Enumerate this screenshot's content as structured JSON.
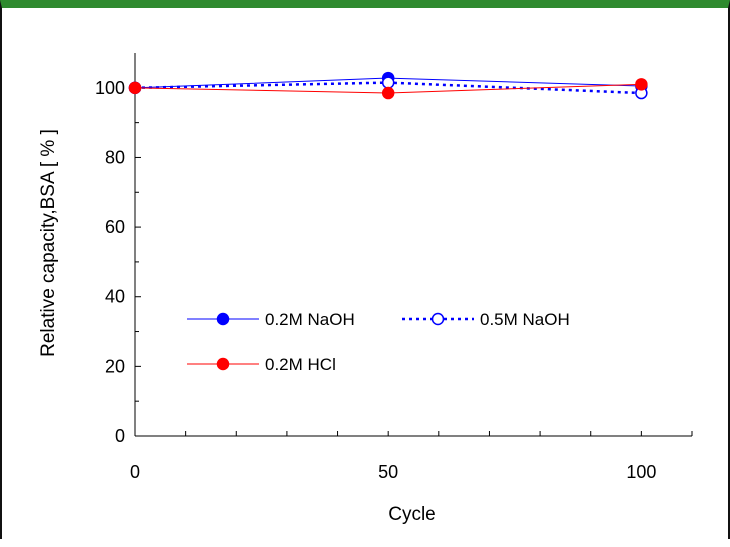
{
  "chart_data": {
    "type": "line",
    "title": "",
    "xlabel": "Cycle",
    "ylabel": "Relative capacity,BSA [ % ]",
    "xlim": [
      0,
      110
    ],
    "ylim": [
      0,
      110
    ],
    "x_ticks": [
      0,
      50,
      100
    ],
    "x_tick_labels": [
      "0",
      "50",
      "100"
    ],
    "y_ticks": [
      0,
      20,
      40,
      60,
      80,
      100
    ],
    "y_tick_labels": [
      "0",
      "20",
      "40",
      "60",
      "80",
      "100"
    ],
    "grid": false,
    "legend_position": "lower-left",
    "series": [
      {
        "name": "0.2M NaOH",
        "x": [
          0,
          50,
          100
        ],
        "y": [
          100,
          102.8,
          100.5
        ],
        "color": "#0000ff",
        "line": "solid",
        "marker": "filled-circle"
      },
      {
        "name": "0.5M NaOH",
        "x": [
          0,
          50,
          100
        ],
        "y": [
          100,
          101.5,
          98.5
        ],
        "color": "#0000ff",
        "line": "dotted",
        "marker": "open-circle"
      },
      {
        "name": "0.2M HCl",
        "x": [
          0,
          50,
          100
        ],
        "y": [
          100,
          98.5,
          101
        ],
        "color": "#ff0000",
        "line": "solid",
        "marker": "filled-circle"
      }
    ]
  }
}
